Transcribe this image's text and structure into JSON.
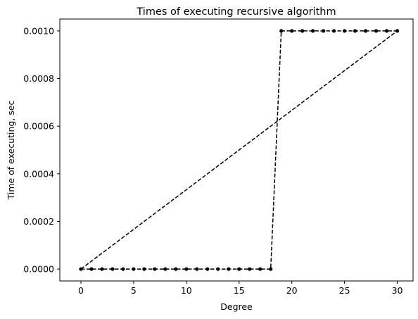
{
  "chart_data": {
    "type": "line",
    "title": "Times of executing recursive algorithm",
    "xlabel": "Degree",
    "ylabel": "Time of executing, sec",
    "xlim": [
      -2,
      31.5
    ],
    "ylim": [
      -5e-05,
      0.00105
    ],
    "xticks": [
      0,
      5,
      10,
      15,
      20,
      25,
      30
    ],
    "xtick_labels": [
      "0",
      "5",
      "10",
      "15",
      "20",
      "25",
      "30"
    ],
    "yticks": [
      0,
      0.0002,
      0.0004,
      0.0006,
      0.0008,
      0.001
    ],
    "ytick_labels": [
      "0.0000",
      "0.0002",
      "0.0004",
      "0.0006",
      "0.0008",
      "0.0010"
    ],
    "grid": false,
    "line_color": "#000000",
    "series": [
      {
        "style": "dashed-with-markers",
        "x": [
          0,
          1,
          2,
          3,
          4,
          5,
          6,
          7,
          8,
          9,
          10,
          11,
          12,
          13,
          14,
          15,
          16,
          17,
          18,
          19,
          20,
          21,
          22,
          23,
          24,
          25,
          26,
          27,
          28,
          29,
          30
        ],
        "y": [
          0,
          0,
          0,
          0,
          0,
          0,
          0,
          0,
          0,
          0,
          0,
          0,
          0,
          0,
          0,
          0,
          0,
          0,
          0,
          0.001,
          0.001,
          0.001,
          0.001,
          0.001,
          0.001,
          0.001,
          0.001,
          0.001,
          0.001,
          0.001,
          0.001
        ]
      },
      {
        "style": "dashed",
        "x": [
          0,
          30
        ],
        "y": [
          0,
          0.001
        ]
      }
    ]
  }
}
